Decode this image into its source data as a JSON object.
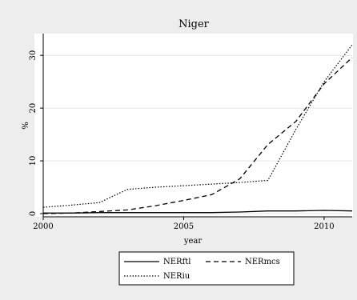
{
  "chart_data": {
    "type": "line",
    "title": "Niger",
    "xlabel": "year",
    "ylabel": "%",
    "xlim": [
      2000,
      2011
    ],
    "ylim": [
      0,
      32
    ],
    "x_ticks": [
      2000,
      2005,
      2010
    ],
    "y_ticks": [
      0,
      10,
      20,
      30
    ],
    "grid": true,
    "legend_position": "bottom",
    "series": [
      {
        "name": "NERftl",
        "dash": "solid",
        "color": "#000000",
        "x": [
          2000,
          2001,
          2002,
          2003,
          2004,
          2005,
          2006,
          2007,
          2008,
          2009,
          2010,
          2011
        ],
        "y": [
          0.1,
          0.1,
          0.2,
          0.2,
          0.2,
          0.2,
          0.2,
          0.3,
          0.5,
          0.5,
          0.6,
          0.5
        ]
      },
      {
        "name": "NERmcs",
        "dash": "dashed",
        "color": "#000000",
        "x": [
          2000,
          2001,
          2002,
          2003,
          2004,
          2005,
          2006,
          2007,
          2008,
          2009,
          2010,
          2011
        ],
        "y": [
          0.0,
          0.1,
          0.4,
          0.7,
          1.5,
          2.5,
          3.6,
          6.6,
          13.1,
          17.5,
          24.6,
          29.6
        ]
      },
      {
        "name": "NERiu",
        "dash": "dotted",
        "color": "#000000",
        "x": [
          2000,
          2001,
          2002,
          2003,
          2004,
          2005,
          2006,
          2007,
          2008,
          2009,
          2010,
          2011
        ],
        "y": [
          1.2,
          1.6,
          2.1,
          4.6,
          5.0,
          5.3,
          5.6,
          5.9,
          6.3,
          16.0,
          25.0,
          32.0
        ]
      }
    ]
  }
}
